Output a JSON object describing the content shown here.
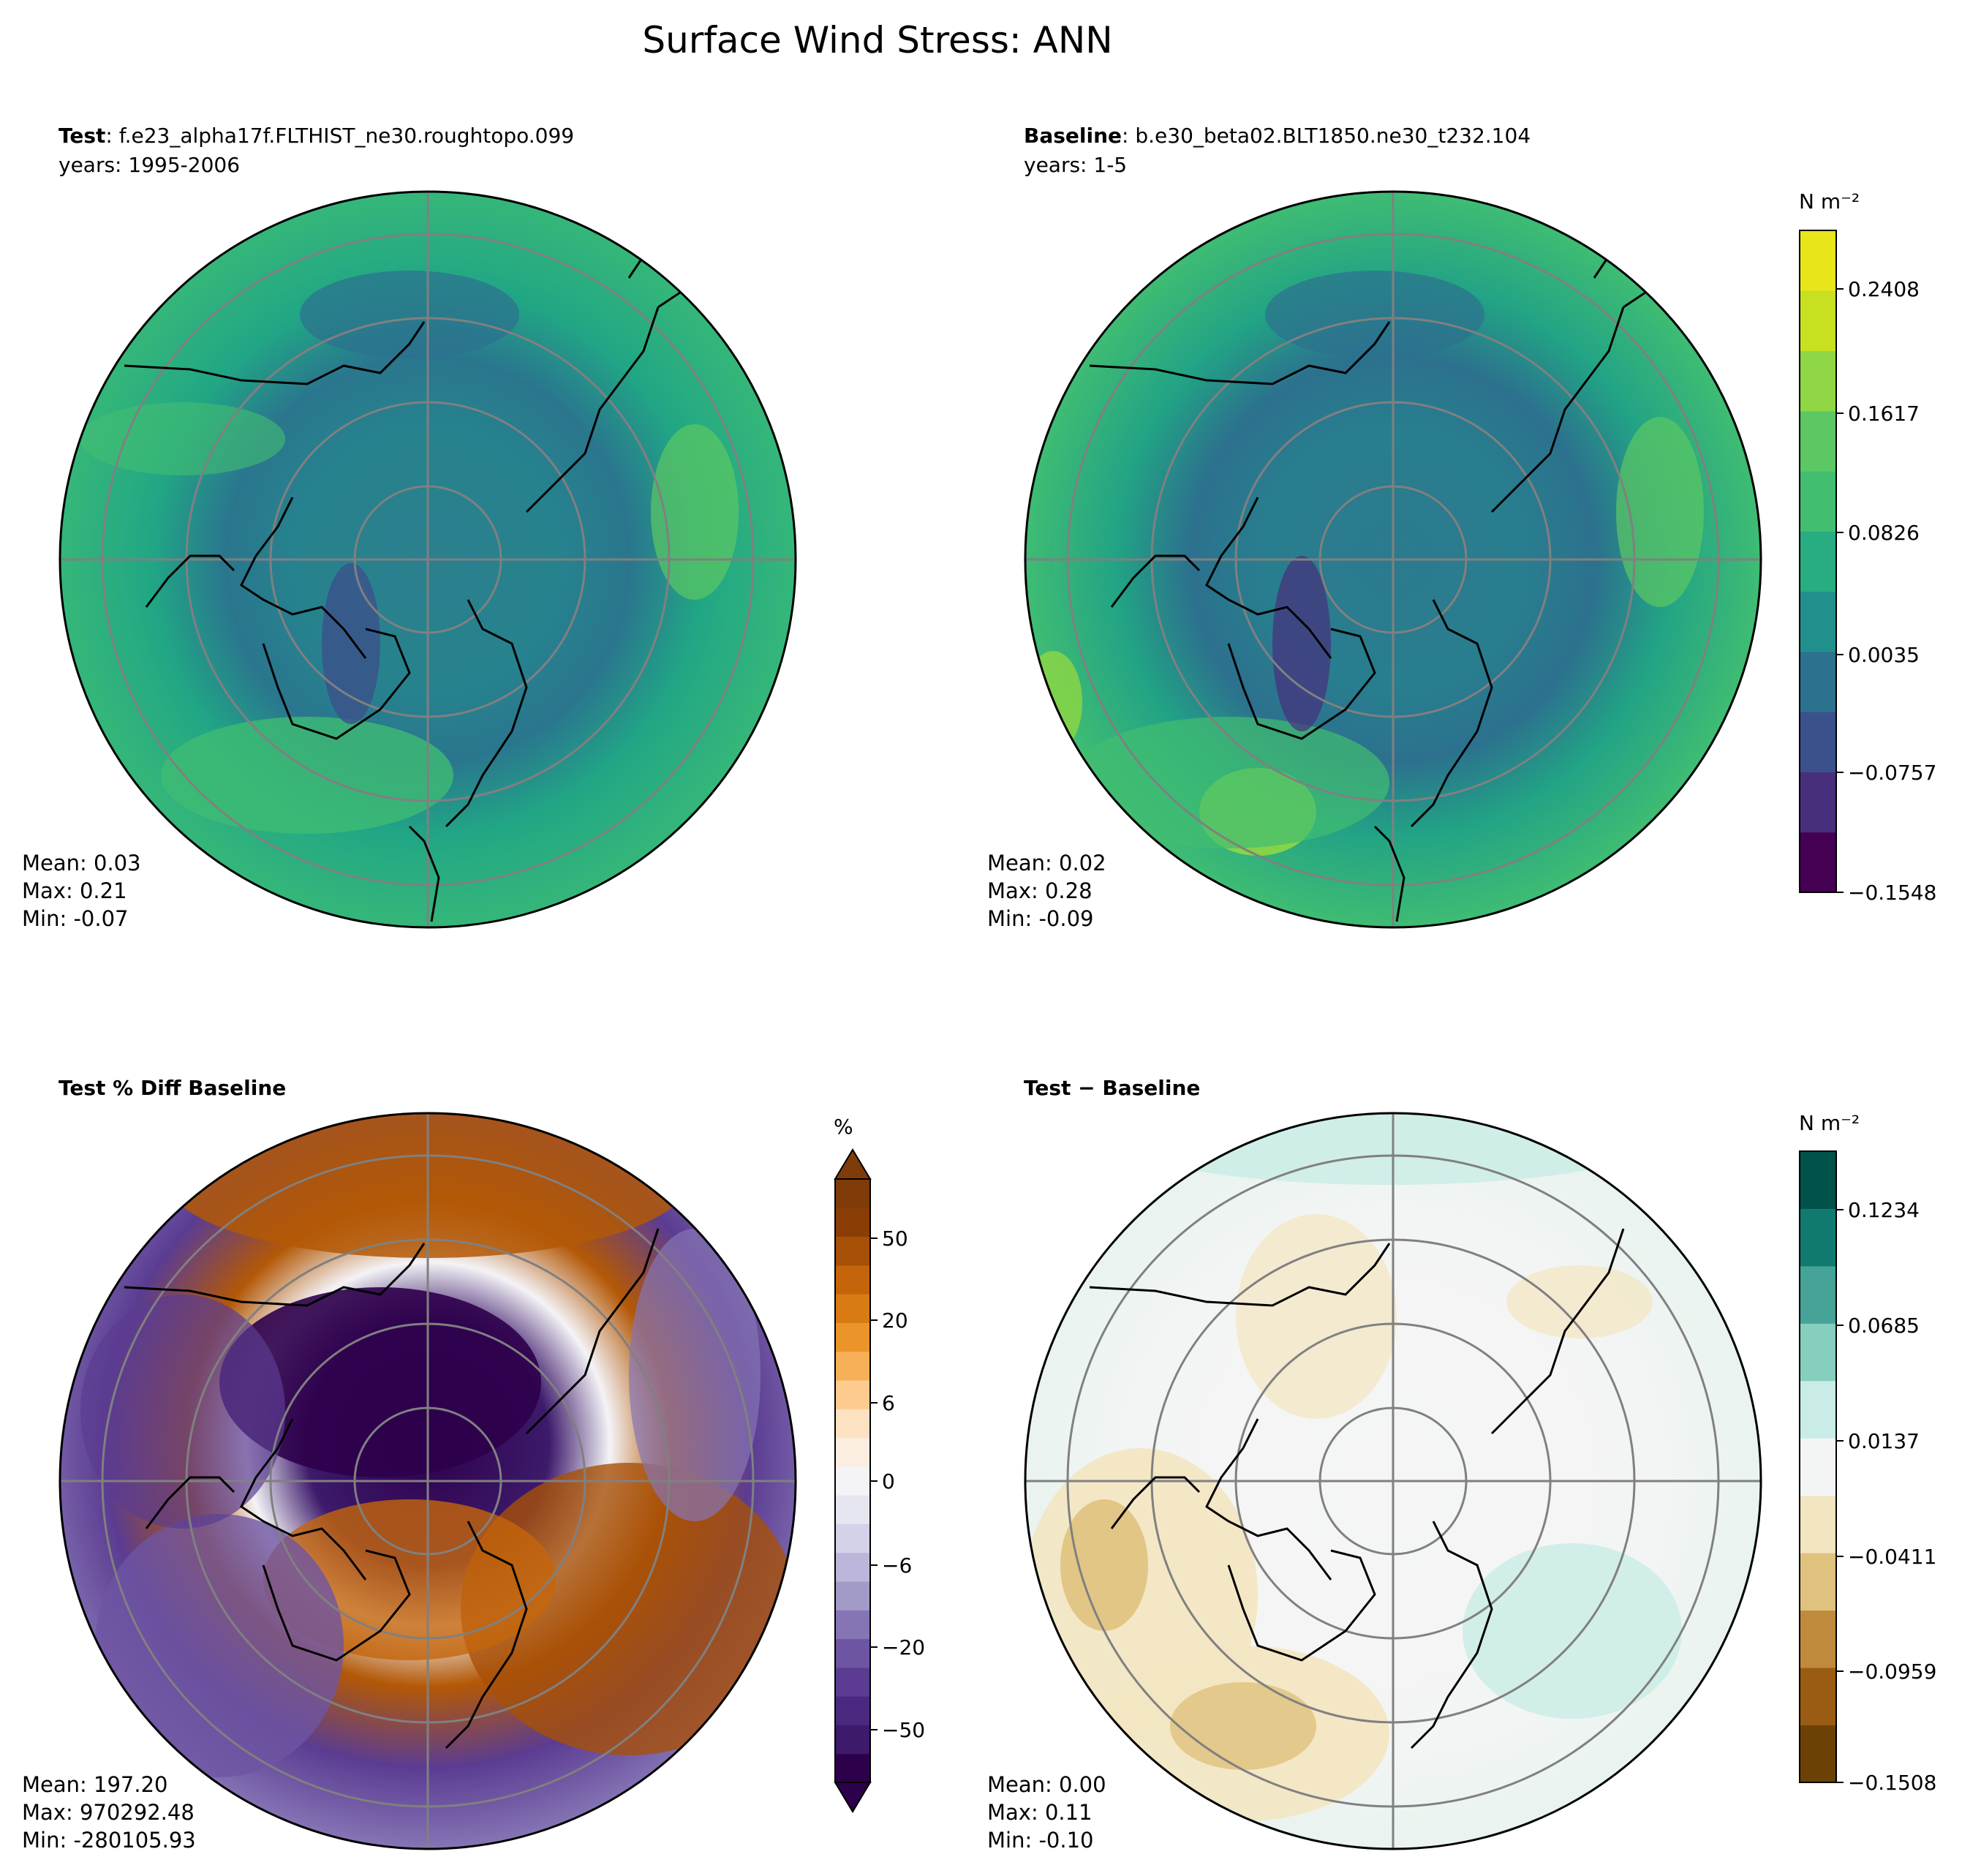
{
  "figure": {
    "title": "Surface Wind Stress: ANN"
  },
  "panels": [
    {
      "id": "test",
      "label": "Test",
      "case": ": f.e23_alpha17f.FLTHIST_ne30.roughtopo.099",
      "years": "years: 1995-2006",
      "stats": {
        "mean": "Mean:  0.03",
        "max": "Max:  0.21",
        "min": "Min: -0.07"
      },
      "palette": "viridis"
    },
    {
      "id": "baseline",
      "label": "Baseline",
      "case": ": b.e30_beta02.BLT1850.ne30_t232.104",
      "years": "years: 1-5",
      "stats": {
        "mean": "Mean:  0.02",
        "max": "Max:  0.28",
        "min": "Min: -0.09"
      },
      "palette": "viridis"
    },
    {
      "id": "pctdiff",
      "label": "Test % Diff Baseline",
      "stats": {
        "mean": "Mean: 197.20",
        "max": "Max: 970292.48",
        "min": "Min: -280105.93"
      },
      "palette": "PuOr"
    },
    {
      "id": "diff",
      "label": "Test − Baseline",
      "stats": {
        "mean": "Mean:  0.00",
        "max": "Max:  0.11",
        "min": "Min: -0.10"
      },
      "palette": "BrBG"
    }
  ],
  "colorbars": {
    "main": {
      "unit": "N m⁻²",
      "ticks": [
        "0.2408",
        "0.1617",
        "0.0826",
        "0.0035",
        "−0.0757",
        "−0.1548"
      ],
      "colors": [
        "#440154",
        "#472f7d",
        "#3b518b",
        "#2c718e",
        "#21908d",
        "#27ad81",
        "#42be71",
        "#5cc863",
        "#8fd744",
        "#c7e020",
        "#e8e51a"
      ]
    },
    "pct": {
      "unit": "%",
      "ticks": [
        "50",
        "20",
        "6",
        "0",
        "−6",
        "−20",
        "−50"
      ],
      "colors": [
        "#2d004b",
        "#3d1a6b",
        "#4a2a80",
        "#5b3c92",
        "#6e55a3",
        "#8675b5",
        "#a29bc8",
        "#bcb7da",
        "#d3d2e8",
        "#e6e6f1",
        "#f4f3f6",
        "#fbeee0",
        "#fde2c2",
        "#fdcb8e",
        "#f7b057",
        "#ea9429",
        "#d97b13",
        "#c4650b",
        "#a75008",
        "#8b3d06",
        "#7f3b08"
      ]
    },
    "diff": {
      "unit": "N m⁻²",
      "ticks": [
        "0.1234",
        "0.0685",
        "0.0137",
        "−0.0411",
        "−0.0959",
        "−0.1508"
      ],
      "colors": [
        "#6b4106",
        "#9a5c12",
        "#c08a3c",
        "#dfc27d",
        "#f3e5c1",
        "#f3f5f4",
        "#c9ece6",
        "#86cfbf",
        "#45a397",
        "#117a70",
        "#01524a"
      ]
    }
  },
  "map_style": {
    "grid_color": "#808080",
    "coast_color": "#000000"
  }
}
